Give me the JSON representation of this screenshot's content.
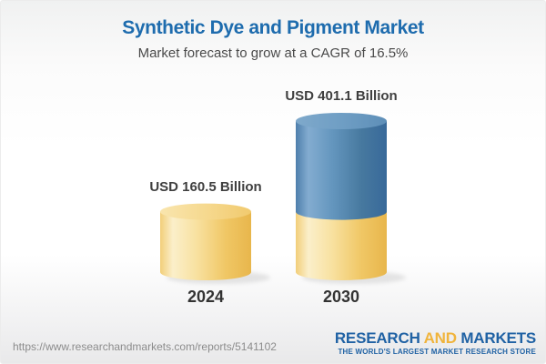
{
  "header": {
    "title": "Synthetic Dye and Pigment Market",
    "subtitle": "Market forecast to grow at a CAGR of 16.5%"
  },
  "chart_data": {
    "type": "bar",
    "title": "Synthetic Dye and Pigment Market",
    "subtitle": "Market forecast to grow at a CAGR of 16.5%",
    "categories": [
      "2024",
      "2030"
    ],
    "values": [
      160.5,
      401.1
    ],
    "unit": "USD Billion",
    "value_labels": [
      "USD 160.5 Billion",
      "USD 401.1 Billion"
    ],
    "cagr_percent": 16.5,
    "bar_shape": "cylinder",
    "stacked_growth_bar": "2030",
    "legend": "none",
    "grid": "off",
    "colors": {
      "base_segment": "#F0C765",
      "growth_segment": "#4E81AF"
    }
  },
  "footer": {
    "url": "https://www.researchandmarkets.com/reports/5141102",
    "logo": {
      "part1": "RESEARCH",
      "part2": "AND",
      "part3": "MARKETS",
      "tagline": "THE WORLD'S LARGEST MARKET RESEARCH STORE"
    }
  },
  "colors": {
    "title": "#1E6CAE",
    "subtitle_text": "#4A4A4A",
    "label_text": "#3F3F3F",
    "year_text": "#333333",
    "url_text": "#8C8C8C",
    "logo_blue": "#2062A4",
    "logo_yellow": "#F0B43C",
    "background_top": "#F0F1F1",
    "background_bottom": "#E9E9EA"
  }
}
